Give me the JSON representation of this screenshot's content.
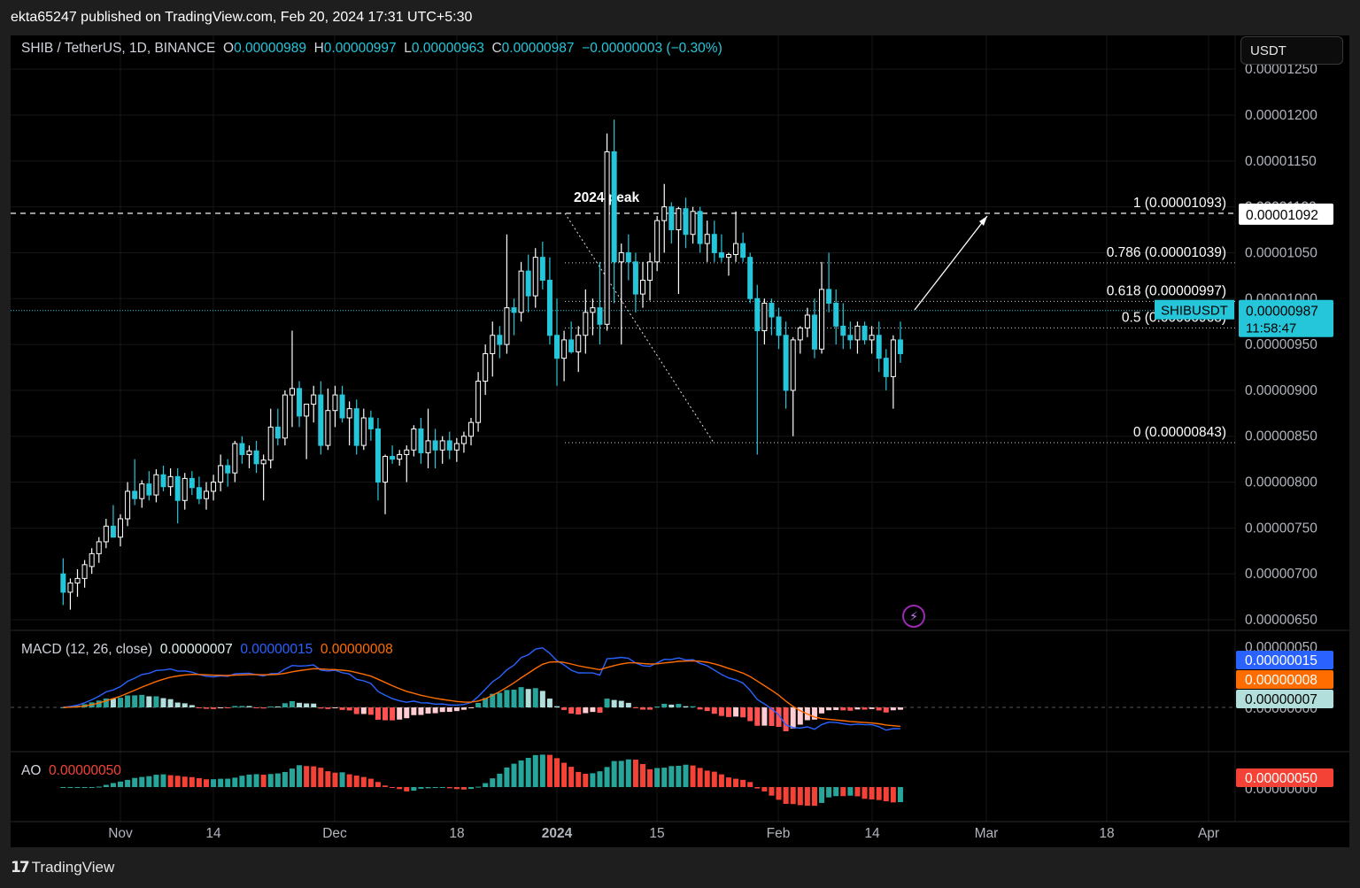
{
  "publisher": "ekta65247 published on TradingView.com, Feb 20, 2024 17:31 UTC+5:30",
  "legend": {
    "symbol": "SHIB / TetherUS, 1D, BINANCE",
    "o_label": "O",
    "o": "0.00000989",
    "h_label": "H",
    "h": "0.00000997",
    "l_label": "L",
    "l": "0.00000963",
    "c_label": "C",
    "c": "0.00000987",
    "change": "−0.00000003 (−0.30%)"
  },
  "currency_button": "USDT",
  "colors": {
    "up": "#ffffff",
    "down": "#26c6da",
    "macd_line": "#2962ff",
    "signal_line": "#ff6d00",
    "ao_up": "#26a69a",
    "ao_down": "#f44336",
    "hist_pos_strong": "#26a69a",
    "hist_pos_weak": "#b2dfdb",
    "hist_neg_strong": "#ff5252",
    "hist_neg_weak": "#ffcdd2"
  },
  "price_axis": [
    "0.00001250",
    "0.00001200",
    "0.00001150",
    "0.00001100",
    "0.00001050",
    "0.00001000",
    "0.00000950",
    "0.00000900",
    "0.00000850",
    "0.00000800",
    "0.00000750",
    "0.00000700",
    "0.00000650"
  ],
  "price_tags": {
    "fib_top": "0.00001092",
    "symbol_tag": "SHIBUSDT",
    "last_price": "0.00000987",
    "countdown": "11:58:47"
  },
  "macd": {
    "label": "MACD (12, 26, close)",
    "hist": "0.00000007",
    "macd": "0.00000015",
    "signal": "0.00000008",
    "axis": [
      "0.00000050",
      "0.00000000"
    ],
    "tags": [
      "0.00000015",
      "0.00000008",
      "0.00000007"
    ]
  },
  "ao": {
    "label": "AO",
    "value": "0.00000050",
    "axis": [
      "0.00000000"
    ],
    "tag": "0.00000050"
  },
  "time_axis": [
    "Nov",
    "14",
    "Dec",
    "18",
    "2024",
    "15",
    "Feb",
    "14",
    "Mar",
    "18",
    "Apr"
  ],
  "annotations": {
    "peak_label": "2024 peak",
    "fib_levels": [
      {
        "label": "1 (0.00001093)",
        "level": 1.093e-05
      },
      {
        "label": "0.786 (0.00001039)",
        "level": 1.039e-05
      },
      {
        "label": "0.618 (0.00000997)",
        "level": 9.97e-06
      },
      {
        "label": "0.5 (0.00000968)",
        "level": 9.68e-06
      },
      {
        "label": "0 (0.00000843)",
        "level": 8.43e-06
      }
    ]
  },
  "chart_data": {
    "type": "candlestick",
    "title": "SHIB / TetherUS, 1D, BINANCE",
    "y_range": [
      6.3e-06,
      1.26e-05
    ],
    "x_range": [
      "2023-10-24",
      "2024-04-02"
    ],
    "candles": [
      {
        "d": "2023-10-24",
        "o": 7e-06,
        "h": 7.17e-06,
        "l": 6.66e-06,
        "c": 6.8e-06
      },
      {
        "d": "2023-10-25",
        "o": 6.8e-06,
        "h": 6.95e-06,
        "l": 6.61e-06,
        "c": 6.9e-06
      },
      {
        "d": "2023-10-26",
        "o": 6.9e-06,
        "h": 7.05e-06,
        "l": 6.75e-06,
        "c": 6.95e-06
      },
      {
        "d": "2023-10-27",
        "o": 6.95e-06,
        "h": 7.15e-06,
        "l": 6.85e-06,
        "c": 7.1e-06
      },
      {
        "d": "2023-10-28",
        "o": 7.08e-06,
        "h": 7.28e-06,
        "l": 7e-06,
        "c": 7.22e-06
      },
      {
        "d": "2023-10-29",
        "o": 7.22e-06,
        "h": 7.4e-06,
        "l": 7.12e-06,
        "c": 7.35e-06
      },
      {
        "d": "2023-10-30",
        "o": 7.35e-06,
        "h": 7.6e-06,
        "l": 7.28e-06,
        "c": 7.52e-06
      },
      {
        "d": "2023-10-31",
        "o": 7.52e-06,
        "h": 7.75e-06,
        "l": 7.4e-06,
        "c": 7.4e-06
      },
      {
        "d": "2023-11-01",
        "o": 7.4e-06,
        "h": 7.65e-06,
        "l": 7.3e-06,
        "c": 7.6e-06
      },
      {
        "d": "2023-11-02",
        "o": 7.6e-06,
        "h": 8e-06,
        "l": 7.52e-06,
        "c": 7.9e-06
      },
      {
        "d": "2023-11-03",
        "o": 7.9e-06,
        "h": 8.25e-06,
        "l": 7.75e-06,
        "c": 7.82e-06
      },
      {
        "d": "2023-11-04",
        "o": 7.82e-06,
        "h": 8.02e-06,
        "l": 7.72e-06,
        "c": 7.98e-06
      },
      {
        "d": "2023-11-05",
        "o": 7.98e-06,
        "h": 8.12e-06,
        "l": 7.8e-06,
        "c": 7.86e-06
      },
      {
        "d": "2023-11-06",
        "o": 7.86e-06,
        "h": 8.14e-06,
        "l": 7.78e-06,
        "c": 8.08e-06
      },
      {
        "d": "2023-11-07",
        "o": 8.08e-06,
        "h": 8.18e-06,
        "l": 7.9e-06,
        "c": 7.95e-06
      },
      {
        "d": "2023-11-08",
        "o": 7.95e-06,
        "h": 8.15e-06,
        "l": 7.85e-06,
        "c": 8.06e-06
      },
      {
        "d": "2023-11-09",
        "o": 8.06e-06,
        "h": 8.15e-06,
        "l": 7.55e-06,
        "c": 7.8e-06
      },
      {
        "d": "2023-11-10",
        "o": 7.8e-06,
        "h": 8.1e-06,
        "l": 7.7e-06,
        "c": 8.04e-06
      },
      {
        "d": "2023-11-11",
        "o": 8.04e-06,
        "h": 8.12e-06,
        "l": 7.86e-06,
        "c": 7.94e-06
      },
      {
        "d": "2023-11-12",
        "o": 7.94e-06,
        "h": 8.06e-06,
        "l": 7.76e-06,
        "c": 7.82e-06
      },
      {
        "d": "2023-11-13",
        "o": 7.82e-06,
        "h": 8e-06,
        "l": 7.7e-06,
        "c": 7.9e-06
      },
      {
        "d": "2023-11-14",
        "o": 7.9e-06,
        "h": 8.08e-06,
        "l": 7.8e-06,
        "c": 8e-06
      },
      {
        "d": "2023-11-15",
        "o": 8e-06,
        "h": 8.3e-06,
        "l": 7.9e-06,
        "c": 8.18e-06
      },
      {
        "d": "2023-11-16",
        "o": 8.18e-06,
        "h": 8.25e-06,
        "l": 7.95e-06,
        "c": 8.1e-06
      },
      {
        "d": "2023-11-17",
        "o": 8.1e-06,
        "h": 8.45e-06,
        "l": 8e-06,
        "c": 8.42e-06
      },
      {
        "d": "2023-11-18",
        "o": 8.42e-06,
        "h": 8.5e-06,
        "l": 8.2e-06,
        "c": 8.3e-06
      },
      {
        "d": "2023-11-19",
        "o": 8.3e-06,
        "h": 8.4e-06,
        "l": 8.15e-06,
        "c": 8.34e-06
      },
      {
        "d": "2023-11-20",
        "o": 8.34e-06,
        "h": 8.45e-06,
        "l": 8.1e-06,
        "c": 8.2e-06
      },
      {
        "d": "2023-11-21",
        "o": 8.2e-06,
        "h": 8.3e-06,
        "l": 7.8e-06,
        "c": 8.24e-06
      },
      {
        "d": "2023-11-22",
        "o": 8.24e-06,
        "h": 8.8e-06,
        "l": 8.15e-06,
        "c": 8.6e-06
      },
      {
        "d": "2023-11-23",
        "o": 8.6e-06,
        "h": 8.8e-06,
        "l": 8.4e-06,
        "c": 8.48e-06
      },
      {
        "d": "2023-11-24",
        "o": 8.48e-06,
        "h": 9e-06,
        "l": 8.4e-06,
        "c": 8.95e-06
      },
      {
        "d": "2023-11-25",
        "o": 8.95e-06,
        "h": 9.65e-06,
        "l": 8.6e-06,
        "c": 9.02e-06
      },
      {
        "d": "2023-11-26",
        "o": 9.02e-06,
        "h": 9.1e-06,
        "l": 8.6e-06,
        "c": 8.72e-06
      },
      {
        "d": "2023-11-27",
        "o": 8.72e-06,
        "h": 8.85e-06,
        "l": 8.25e-06,
        "c": 8.85e-06
      },
      {
        "d": "2023-11-28",
        "o": 8.85e-06,
        "h": 9.05e-06,
        "l": 8.65e-06,
        "c": 8.95e-06
      },
      {
        "d": "2023-11-29",
        "o": 8.95e-06,
        "h": 9.1e-06,
        "l": 8.3e-06,
        "c": 8.4e-06
      },
      {
        "d": "2023-11-30",
        "o": 8.4e-06,
        "h": 9.02e-06,
        "l": 8.35e-06,
        "c": 8.78e-06
      },
      {
        "d": "2023-12-01",
        "o": 8.78e-06,
        "h": 9.05e-06,
        "l": 8.6e-06,
        "c": 8.95e-06
      },
      {
        "d": "2023-12-02",
        "o": 8.95e-06,
        "h": 9.05e-06,
        "l": 8.65e-06,
        "c": 8.7e-06
      },
      {
        "d": "2023-12-03",
        "o": 8.7e-06,
        "h": 8.88e-06,
        "l": 8.4e-06,
        "c": 8.8e-06
      },
      {
        "d": "2023-12-04",
        "o": 8.8e-06,
        "h": 8.9e-06,
        "l": 8.3e-06,
        "c": 8.4e-06
      },
      {
        "d": "2023-12-05",
        "o": 8.4e-06,
        "h": 8.8e-06,
        "l": 8.35e-06,
        "c": 8.7e-06
      },
      {
        "d": "2023-12-06",
        "o": 8.7e-06,
        "h": 8.78e-06,
        "l": 8.45e-06,
        "c": 8.58e-06
      },
      {
        "d": "2023-12-07",
        "o": 8.58e-06,
        "h": 8.7e-06,
        "l": 7.8e-06,
        "c": 8e-06
      },
      {
        "d": "2023-12-08",
        "o": 8e-06,
        "h": 8.3e-06,
        "l": 7.65e-06,
        "c": 8.28e-06
      },
      {
        "d": "2023-12-09",
        "o": 8.28e-06,
        "h": 8.4e-06,
        "l": 8.2e-06,
        "c": 8.25e-06
      },
      {
        "d": "2023-12-10",
        "o": 8.25e-06,
        "h": 8.35e-06,
        "l": 8.18e-06,
        "c": 8.3e-06
      },
      {
        "d": "2023-12-11",
        "o": 8.3e-06,
        "h": 8.4e-06,
        "l": 8e-06,
        "c": 8.35e-06
      },
      {
        "d": "2023-12-12",
        "o": 8.35e-06,
        "h": 8.62e-06,
        "l": 8.28e-06,
        "c": 8.58e-06
      },
      {
        "d": "2023-12-13",
        "o": 8.58e-06,
        "h": 8.7e-06,
        "l": 8.2e-06,
        "c": 8.32e-06
      },
      {
        "d": "2023-12-14",
        "o": 8.32e-06,
        "h": 8.8e-06,
        "l": 8.15e-06,
        "c": 8.45e-06
      },
      {
        "d": "2023-12-15",
        "o": 8.45e-06,
        "h": 8.58e-06,
        "l": 8.15e-06,
        "c": 8.35e-06
      },
      {
        "d": "2023-12-16",
        "o": 8.35e-06,
        "h": 8.5e-06,
        "l": 8.2e-06,
        "c": 8.45e-06
      },
      {
        "d": "2023-12-17",
        "o": 8.45e-06,
        "h": 8.55e-06,
        "l": 8.25e-06,
        "c": 8.35e-06
      },
      {
        "d": "2023-12-18",
        "o": 8.35e-06,
        "h": 8.48e-06,
        "l": 8.22e-06,
        "c": 8.42e-06
      },
      {
        "d": "2023-12-19",
        "o": 8.42e-06,
        "h": 8.55e-06,
        "l": 8.32e-06,
        "c": 8.5e-06
      },
      {
        "d": "2023-12-20",
        "o": 8.5e-06,
        "h": 8.7e-06,
        "l": 8.4e-06,
        "c": 8.65e-06
      },
      {
        "d": "2023-12-21",
        "o": 8.65e-06,
        "h": 9.2e-06,
        "l": 8.55e-06,
        "c": 9.1e-06
      },
      {
        "d": "2023-12-22",
        "o": 9.1e-06,
        "h": 9.5e-06,
        "l": 8.95e-06,
        "c": 9.4e-06
      },
      {
        "d": "2023-12-23",
        "o": 9.4e-06,
        "h": 9.75e-06,
        "l": 9.15e-06,
        "c": 9.6e-06
      },
      {
        "d": "2023-12-24",
        "o": 9.6e-06,
        "h": 9.7e-06,
        "l": 9.35e-06,
        "c": 9.5e-06
      },
      {
        "d": "2023-12-25",
        "o": 9.5e-06,
        "h": 1.07e-05,
        "l": 9.4e-06,
        "c": 9.9e-06
      },
      {
        "d": "2023-12-26",
        "o": 9.9e-06,
        "h": 1e-05,
        "l": 9.6e-06,
        "c": 9.85e-06
      },
      {
        "d": "2023-12-27",
        "o": 9.85e-06,
        "h": 1.04e-05,
        "l": 9.75e-06,
        "c": 1.03e-05
      },
      {
        "d": "2023-12-28",
        "o": 1.03e-05,
        "h": 1.048e-05,
        "l": 9.85e-06,
        "c": 1.003e-05
      },
      {
        "d": "2023-12-29",
        "o": 1.003e-05,
        "h": 1.055e-05,
        "l": 9.9e-06,
        "c": 1.045e-05
      },
      {
        "d": "2023-12-30",
        "o": 1.045e-05,
        "h": 1.062e-05,
        "l": 1.01e-05,
        "c": 1.02e-05
      },
      {
        "d": "2023-12-31",
        "o": 1.02e-05,
        "h": 1.045e-05,
        "l": 9.5e-06,
        "c": 9.6e-06
      },
      {
        "d": "2024-01-01",
        "o": 9.6e-06,
        "h": 1e-05,
        "l": 9.05e-06,
        "c": 9.35e-06
      },
      {
        "d": "2024-01-02",
        "o": 9.35e-06,
        "h": 9.65e-06,
        "l": 9.1e-06,
        "c": 9.55e-06
      },
      {
        "d": "2024-01-03",
        "o": 9.55e-06,
        "h": 9.75e-06,
        "l": 9.4e-06,
        "c": 9.42e-06
      },
      {
        "d": "2024-01-04",
        "o": 9.42e-06,
        "h": 9.7e-06,
        "l": 9.2e-06,
        "c": 9.6e-06
      },
      {
        "d": "2024-01-05",
        "o": 9.6e-06,
        "h": 1.01e-05,
        "l": 9.4e-06,
        "c": 9.85e-06
      },
      {
        "d": "2024-01-06",
        "o": 9.85e-06,
        "h": 1e-05,
        "l": 9.6e-06,
        "c": 9.9e-06
      },
      {
        "d": "2024-01-07",
        "o": 9.9e-06,
        "h": 1.04e-05,
        "l": 9.5e-06,
        "c": 9.72e-06
      },
      {
        "d": "2024-01-08",
        "o": 9.72e-06,
        "h": 1.18e-05,
        "l": 9.65e-06,
        "c": 1.16e-05
      },
      {
        "d": "2024-01-09",
        "o": 1.16e-05,
        "h": 1.195e-05,
        "l": 9.95e-06,
        "c": 1.04e-05
      },
      {
        "d": "2024-01-10",
        "o": 1.04e-05,
        "h": 1.06e-05,
        "l": 9.5e-06,
        "c": 1.05e-05
      },
      {
        "d": "2024-01-11",
        "o": 1.05e-05,
        "h": 1.07e-05,
        "l": 1.02e-05,
        "c": 1.04e-05
      },
      {
        "d": "2024-01-12",
        "o": 1.04e-05,
        "h": 1.05e-05,
        "l": 9.85e-06,
        "c": 1.005e-05
      },
      {
        "d": "2024-01-13",
        "o": 1.005e-05,
        "h": 1.04e-05,
        "l": 9.9e-06,
        "c": 1.02e-05
      },
      {
        "d": "2024-01-14",
        "o": 1.02e-05,
        "h": 1.05e-05,
        "l": 9.98e-06,
        "c": 1.04e-05
      },
      {
        "d": "2024-01-15",
        "o": 1.04e-05,
        "h": 1.09e-05,
        "l": 1.03e-05,
        "c": 1.085e-05
      },
      {
        "d": "2024-01-16",
        "o": 1.085e-05,
        "h": 1.125e-05,
        "l": 1.05e-05,
        "c": 1.1e-05
      },
      {
        "d": "2024-01-17",
        "o": 1.1e-05,
        "h": 1.105e-05,
        "l": 1.06e-05,
        "c": 1.075e-05
      },
      {
        "d": "2024-01-18",
        "o": 1.075e-05,
        "h": 1.1e-05,
        "l": 1.005e-05,
        "c": 1.098e-05
      },
      {
        "d": "2024-01-19",
        "o": 1.098e-05,
        "h": 1.11e-05,
        "l": 1.055e-05,
        "c": 1.07e-05
      },
      {
        "d": "2024-01-20",
        "o": 1.07e-05,
        "h": 1.1e-05,
        "l": 1.06e-05,
        "c": 1.095e-05
      },
      {
        "d": "2024-01-21",
        "o": 1.095e-05,
        "h": 1.1e-05,
        "l": 1.05e-05,
        "c": 1.06e-05
      },
      {
        "d": "2024-01-22",
        "o": 1.06e-05,
        "h": 1.085e-05,
        "l": 1.04e-05,
        "c": 1.07e-05
      },
      {
        "d": "2024-01-23",
        "o": 1.07e-05,
        "h": 1.085e-05,
        "l": 1.04e-05,
        "c": 1.05e-05
      },
      {
        "d": "2024-01-24",
        "o": 1.05e-05,
        "h": 1.07e-05,
        "l": 1.04e-05,
        "c": 1.045e-05
      },
      {
        "d": "2024-01-25",
        "o": 1.045e-05,
        "h": 1.05e-05,
        "l": 1.025e-05,
        "c": 1.048e-05
      },
      {
        "d": "2024-01-26",
        "o": 1.048e-05,
        "h": 1.095e-05,
        "l": 1.04e-05,
        "c": 1.06e-05
      },
      {
        "d": "2024-01-27",
        "o": 1.06e-05,
        "h": 1.072e-05,
        "l": 1.04e-05,
        "c": 1.045e-05
      },
      {
        "d": "2024-01-28",
        "o": 1.045e-05,
        "h": 1.05e-05,
        "l": 9.95e-06,
        "c": 1e-05
      },
      {
        "d": "2024-01-29",
        "o": 1e-05,
        "h": 1.015e-05,
        "l": 8.3e-06,
        "c": 9.65e-06
      },
      {
        "d": "2024-01-30",
        "o": 9.65e-06,
        "h": 1e-05,
        "l": 9.5e-06,
        "c": 9.95e-06
      },
      {
        "d": "2024-01-31",
        "o": 9.95e-06,
        "h": 1e-05,
        "l": 9.6e-06,
        "c": 9.8e-06
      },
      {
        "d": "2024-02-01",
        "o": 9.8e-06,
        "h": 9.9e-06,
        "l": 9.45e-06,
        "c": 9.6e-06
      },
      {
        "d": "2024-02-02",
        "o": 9.6e-06,
        "h": 9.75e-06,
        "l": 8.8e-06,
        "c": 9e-06
      },
      {
        "d": "2024-02-03",
        "o": 9e-06,
        "h": 9.58e-06,
        "l": 8.5e-06,
        "c": 9.55e-06
      },
      {
        "d": "2024-02-04",
        "o": 9.55e-06,
        "h": 9.7e-06,
        "l": 9.4e-06,
        "c": 9.68e-06
      },
      {
        "d": "2024-02-05",
        "o": 9.68e-06,
        "h": 9.9e-06,
        "l": 9.58e-06,
        "c": 9.82e-06
      },
      {
        "d": "2024-02-06",
        "o": 9.82e-06,
        "h": 1e-05,
        "l": 9.35e-06,
        "c": 9.45e-06
      },
      {
        "d": "2024-02-07",
        "o": 9.45e-06,
        "h": 1.04e-05,
        "l": 9.4e-06,
        "c": 1.01e-05
      },
      {
        "d": "2024-02-08",
        "o": 1.01e-05,
        "h": 1.05e-05,
        "l": 9.85e-06,
        "c": 9.95e-06
      },
      {
        "d": "2024-02-09",
        "o": 9.95e-06,
        "h": 1.01e-05,
        "l": 9.5e-06,
        "c": 9.7e-06
      },
      {
        "d": "2024-02-10",
        "o": 9.7e-06,
        "h": 9.95e-06,
        "l": 9.45e-06,
        "c": 9.6e-06
      },
      {
        "d": "2024-02-11",
        "o": 9.6e-06,
        "h": 9.75e-06,
        "l": 9.45e-06,
        "c": 9.55e-06
      },
      {
        "d": "2024-02-12",
        "o": 9.55e-06,
        "h": 9.75e-06,
        "l": 9.4e-06,
        "c": 9.7e-06
      },
      {
        "d": "2024-02-13",
        "o": 9.7e-06,
        "h": 9.75e-06,
        "l": 9.5e-06,
        "c": 9.55e-06
      },
      {
        "d": "2024-02-14",
        "o": 9.55e-06,
        "h": 9.7e-06,
        "l": 9.4e-06,
        "c": 9.6e-06
      },
      {
        "d": "2024-02-15",
        "o": 9.6e-06,
        "h": 9.75e-06,
        "l": 9.2e-06,
        "c": 9.35e-06
      },
      {
        "d": "2024-02-16",
        "o": 9.35e-06,
        "h": 9.45e-06,
        "l": 9e-06,
        "c": 9.15e-06
      },
      {
        "d": "2024-02-17",
        "o": 9.15e-06,
        "h": 9.6e-06,
        "l": 8.8e-06,
        "c": 9.55e-06
      },
      {
        "d": "2024-02-18",
        "o": 9.55e-06,
        "h": 9.75e-06,
        "l": 9.3e-06,
        "c": 9.4e-06
      }
    ],
    "ylabel": "",
    "xlabel": ""
  }
}
